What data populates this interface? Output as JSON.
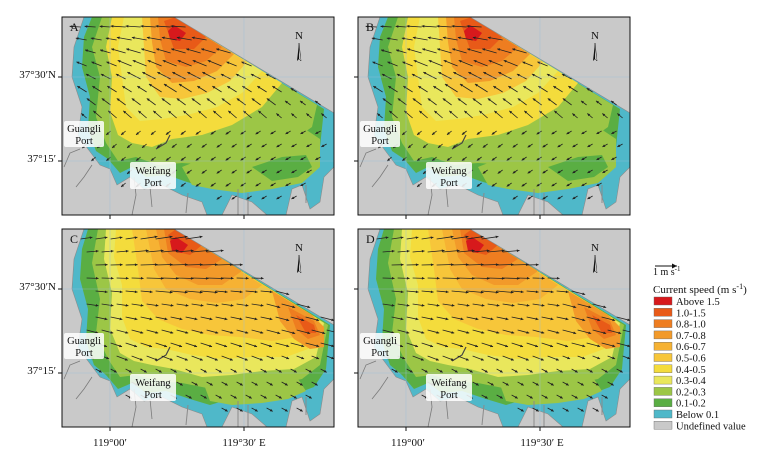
{
  "panels": [
    {
      "label": "A",
      "pattern": "ebb-west"
    },
    {
      "label": "B",
      "pattern": "ebb-west"
    },
    {
      "label": "C",
      "pattern": "flood-east"
    },
    {
      "label": "D",
      "pattern": "flood-east"
    }
  ],
  "axes": {
    "lat_labels": [
      "37°30′N",
      "37°15′"
    ],
    "lon_labels": [
      "119°00′",
      "119°30′ E"
    ]
  },
  "places": {
    "guangli": [
      "Guangli",
      "Port"
    ],
    "weifang": [
      "Weifang",
      "Port"
    ]
  },
  "north": "N",
  "legend": {
    "scale_label": "1 m s",
    "scale_sup": "-1",
    "title_main": "Current speed (m s",
    "title_sup": "-1",
    "title_close": ")",
    "items": [
      {
        "label": "Above 1.5",
        "color": "#d7191c"
      },
      {
        "label": "1.0-1.5",
        "color": "#e85a18"
      },
      {
        "label": "0.8-1.0",
        "color": "#ee7d20"
      },
      {
        "label": "0.7-0.8",
        "color": "#f29a2a"
      },
      {
        "label": "0.6-0.7",
        "color": "#f6b233"
      },
      {
        "label": "0.5-0.6",
        "color": "#f7c63a"
      },
      {
        "label": "0.4-0.5",
        "color": "#f4dc3c"
      },
      {
        "label": "0.3-0.4",
        "color": "#e9e75c"
      },
      {
        "label": "0.2-0.3",
        "color": "#9cc646"
      },
      {
        "label": "0.1-0.2",
        "color": "#5aae43"
      },
      {
        "label": "Below 0.1",
        "color": "#4fb8c9"
      },
      {
        "label": "Undefined value",
        "color": "#c9c9c9"
      }
    ]
  }
}
